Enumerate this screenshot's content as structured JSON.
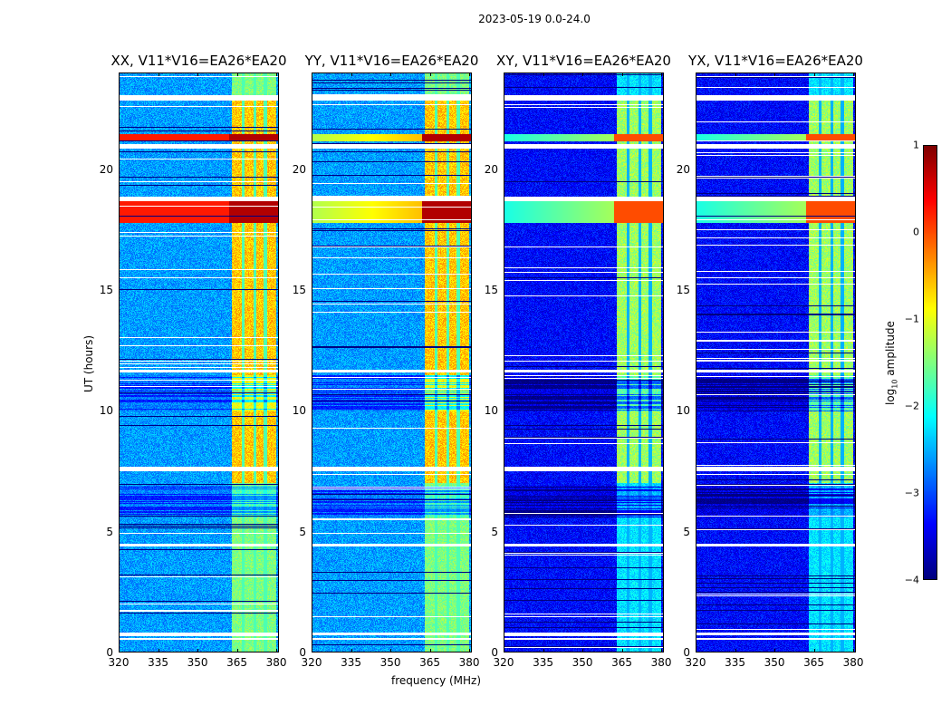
{
  "figure": {
    "suptitle": "2023-05-19 0.0-24.0"
  },
  "chart_data": {
    "type": "heatmap",
    "title": "2023-05-19 0.0-24.0",
    "xlabel": "frequency (MHz)",
    "ylabel": "UT (hours)",
    "xlim": [
      320,
      381
    ],
    "ylim": [
      0,
      24
    ],
    "x_ticks": [
      "320",
      "335",
      "350",
      "365",
      "380"
    ],
    "x_tick_values": [
      320,
      335,
      350,
      365,
      380
    ],
    "y_ticks": [
      "0",
      "5",
      "10",
      "15",
      "20"
    ],
    "y_tick_values": [
      0,
      5,
      10,
      15,
      20
    ],
    "colormap": "jet",
    "colorbar": {
      "label": "log10 amplitude",
      "label_main": "log",
      "label_sub": "10",
      "label_rest": " amplitude",
      "range": [
        -4,
        1
      ],
      "ticks": [
        "1",
        "0",
        "−1",
        "−2",
        "−3",
        "−4"
      ],
      "tick_values": [
        1,
        0,
        -1,
        -2,
        -3,
        -4
      ]
    },
    "panels": [
      {
        "title": "XX, V11*V16=EA26*EA20",
        "polarization": "XX"
      },
      {
        "title": "YY, V11*V16=EA26*EA20",
        "polarization": "YY"
      },
      {
        "title": "XY, V11*V16=EA26*EA20",
        "polarization": "XY"
      },
      {
        "title": "YX, V11*V16=EA26*EA20",
        "polarization": "YX"
      }
    ],
    "features": {
      "bright_band_mhz": [
        363,
        380
      ],
      "band_gaps_mhz": [
        367.5,
        372,
        376
      ],
      "strong_rfi_hours": [
        [
          17.8,
          18.7
        ],
        [
          21.2,
          21.5
        ]
      ],
      "flagged_hours_white": [
        [
          7.5,
          7.7
        ],
        [
          18.7,
          18.9
        ],
        [
          20.9,
          21.1
        ],
        [
          22.9,
          23.1
        ],
        [
          11.6,
          11.7
        ],
        [
          4.4,
          4.5
        ],
        [
          0.5,
          0.6
        ],
        [
          0.7,
          0.8
        ]
      ],
      "low_amp_hours": [
        [
          10.0,
          11.5
        ],
        [
          5.6,
          6.9
        ]
      ]
    }
  }
}
